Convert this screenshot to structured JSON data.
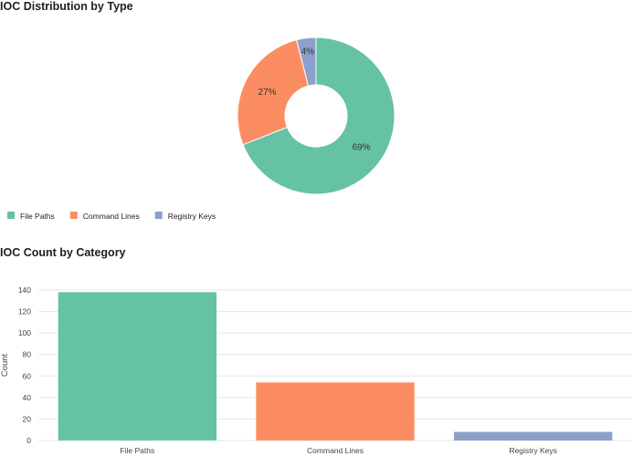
{
  "colors": {
    "file_paths": "#66c2a5",
    "command_lines": "#fc8d62",
    "registry_keys": "#8da0cb",
    "grid": "#e6e6e6",
    "axis_text": "#444444",
    "pie_label": "#333333"
  },
  "sections": {
    "pie_title": "IOC Distribution by Type",
    "bar_title": "IOC Count by Category"
  },
  "chart_data": [
    {
      "type": "pie",
      "title": "IOC Distribution by Type",
      "donut": true,
      "categories": [
        "File Paths",
        "Command Lines",
        "Registry Keys"
      ],
      "values": [
        69,
        27,
        4
      ],
      "labels": [
        "69%",
        "27%",
        "4%"
      ],
      "legend": {
        "placement": "bottom-left",
        "items": [
          "File Paths",
          "Command Lines",
          "Registry Keys"
        ]
      }
    },
    {
      "type": "bar",
      "title": "IOC Count by Category",
      "categories": [
        "File Paths",
        "Command Lines",
        "Registry Keys"
      ],
      "values": [
        138,
        54,
        8
      ],
      "xlabel": "",
      "ylabel": "Count",
      "ylim": [
        0,
        140
      ],
      "yticks": [
        0,
        20,
        40,
        60,
        80,
        100,
        120,
        140
      ],
      "grid": true
    }
  ]
}
